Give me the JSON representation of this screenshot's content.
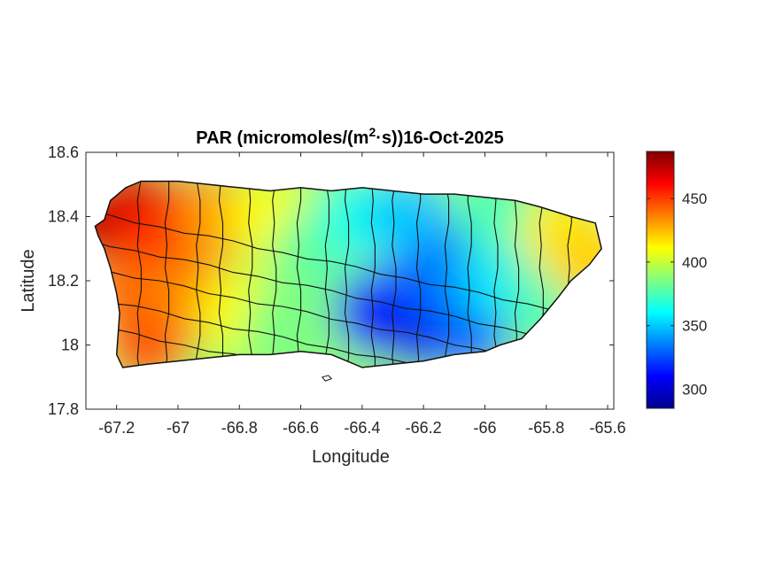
{
  "chart_data": {
    "type": "heatmap",
    "title_main": "PAR (micromoles/(m",
    "title_sup": "2",
    "title_tail": "·s))16-Oct-2025",
    "xlabel": "Longitude",
    "ylabel": "Latitude",
    "xlim": [
      -67.3,
      -65.58
    ],
    "ylim": [
      17.8,
      18.6
    ],
    "xticks": [
      -67.2,
      -67,
      -66.8,
      -66.6,
      -66.4,
      -66.2,
      -66,
      -65.8,
      -65.6
    ],
    "xtick_labels": [
      "-67.2",
      "-67",
      "-66.8",
      "-66.6",
      "-66.4",
      "-66.2",
      "-66",
      "-65.8",
      "-65.6"
    ],
    "yticks": [
      17.8,
      18,
      18.2,
      18.4,
      18.6
    ],
    "ytick_labels": [
      "17.8",
      "18",
      "18.2",
      "18.4",
      "18.6"
    ],
    "colorbar": {
      "colormap": "jet",
      "clim": [
        285,
        487
      ],
      "ticks": [
        300,
        350,
        400,
        450
      ],
      "tick_labels": [
        "300",
        "350",
        "400",
        "450"
      ]
    },
    "grid": false,
    "region": "Puerto Rico",
    "data_points": [
      {
        "lon": -67.25,
        "lat": 18.38,
        "value": 480
      },
      {
        "lon": -67.15,
        "lat": 18.45,
        "value": 470
      },
      {
        "lon": -67.1,
        "lat": 18.3,
        "value": 455
      },
      {
        "lon": -67.15,
        "lat": 18.15,
        "value": 440
      },
      {
        "lon": -67.1,
        "lat": 18.0,
        "value": 445
      },
      {
        "lon": -66.95,
        "lat": 18.4,
        "value": 450
      },
      {
        "lon": -66.95,
        "lat": 18.15,
        "value": 435
      },
      {
        "lon": -66.85,
        "lat": 18.4,
        "value": 430
      },
      {
        "lon": -66.8,
        "lat": 18.1,
        "value": 410
      },
      {
        "lon": -66.7,
        "lat": 18.4,
        "value": 410
      },
      {
        "lon": -66.65,
        "lat": 18.05,
        "value": 385
      },
      {
        "lon": -66.55,
        "lat": 18.3,
        "value": 380
      },
      {
        "lon": -66.4,
        "lat": 18.4,
        "value": 365
      },
      {
        "lon": -66.35,
        "lat": 18.1,
        "value": 310
      },
      {
        "lon": -66.2,
        "lat": 18.05,
        "value": 305
      },
      {
        "lon": -66.2,
        "lat": 18.2,
        "value": 325
      },
      {
        "lon": -66.25,
        "lat": 18.4,
        "value": 350
      },
      {
        "lon": -66.1,
        "lat": 18.25,
        "value": 335
      },
      {
        "lon": -66.05,
        "lat": 18.05,
        "value": 330
      },
      {
        "lon": -65.95,
        "lat": 18.2,
        "value": 355
      },
      {
        "lon": -65.95,
        "lat": 18.4,
        "value": 375
      },
      {
        "lon": -65.8,
        "lat": 18.15,
        "value": 375
      },
      {
        "lon": -65.75,
        "lat": 18.35,
        "value": 415
      },
      {
        "lon": -65.65,
        "lat": 18.25,
        "value": 420
      }
    ]
  }
}
